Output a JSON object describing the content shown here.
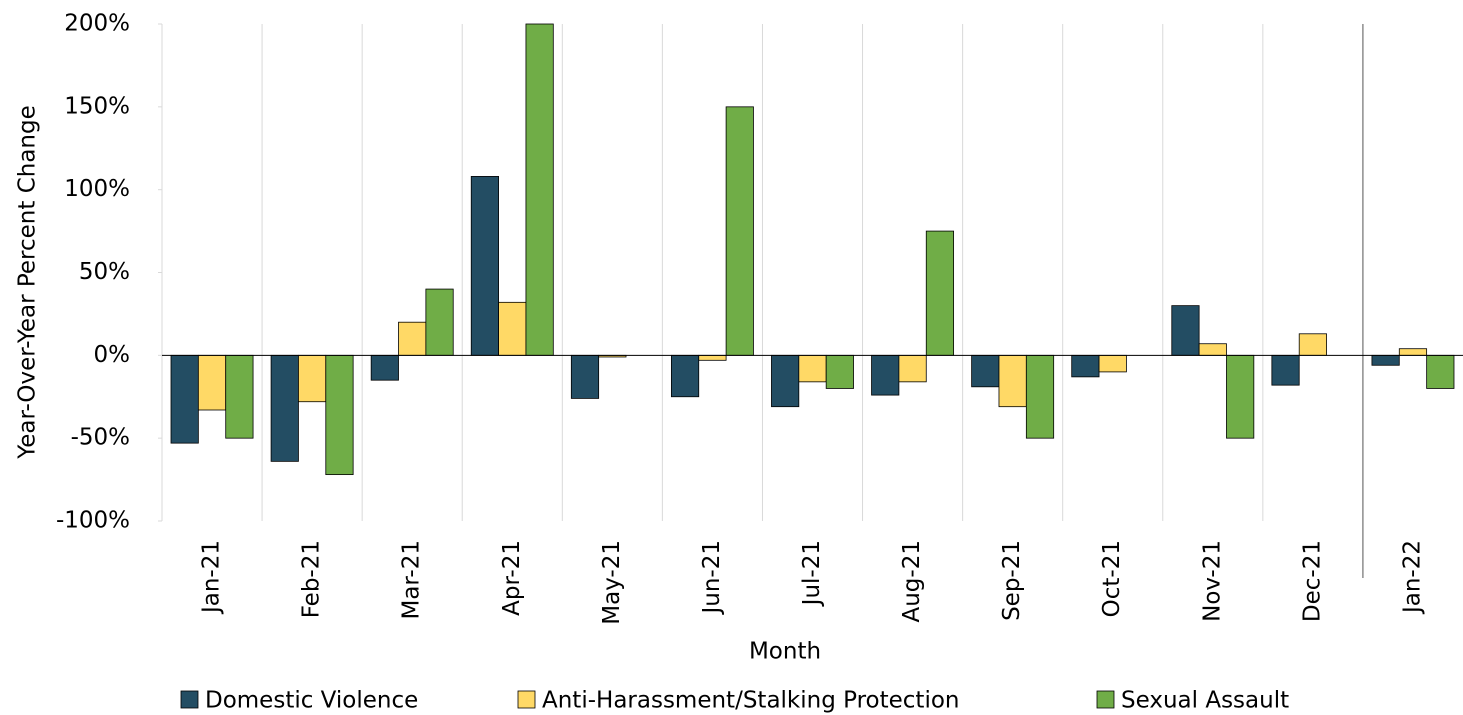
{
  "chart_data": {
    "type": "bar",
    "x_label": "Month",
    "y_label": "Year-Over-Year Percent Change",
    "categories": [
      "Jan-21",
      "Feb-21",
      "Mar-21",
      "Apr-21",
      "May-21",
      "Jun-21",
      "Jul-21",
      "Aug-21",
      "Sep-21",
      "Oct-21",
      "Nov-21",
      "Dec-21",
      "Jan-22"
    ],
    "series": [
      {
        "name": "Domestic Violence",
        "color": "#234d63",
        "values": [
          -53,
          -64,
          -15,
          108,
          -26,
          -25,
          -31,
          -24,
          -19,
          -13,
          30,
          -18,
          -6
        ]
      },
      {
        "name": "Anti-Harassment/Stalking Protection",
        "color": "#ffd966",
        "values": [
          -33,
          -28,
          20,
          32,
          -1,
          -3,
          -16,
          -16,
          -31,
          -10,
          7,
          13,
          4
        ]
      },
      {
        "name": "Sexual Assault",
        "color": "#70ad47",
        "values": [
          -50,
          -72,
          40,
          200,
          null,
          150,
          -20,
          75,
          -50,
          null,
          -50,
          null,
          -20
        ]
      }
    ],
    "ylim": [
      -100,
      200
    ],
    "yticks": [
      {
        "value": -100,
        "label": "-100%"
      },
      {
        "value": -50,
        "label": "-50%"
      },
      {
        "value": 0,
        "label": "0%"
      },
      {
        "value": 50,
        "label": "50%"
      },
      {
        "value": 100,
        "label": "100%"
      },
      {
        "value": 150,
        "label": "150%"
      },
      {
        "value": 200,
        "label": "200%"
      }
    ],
    "grid": true,
    "legend": "bottom"
  }
}
